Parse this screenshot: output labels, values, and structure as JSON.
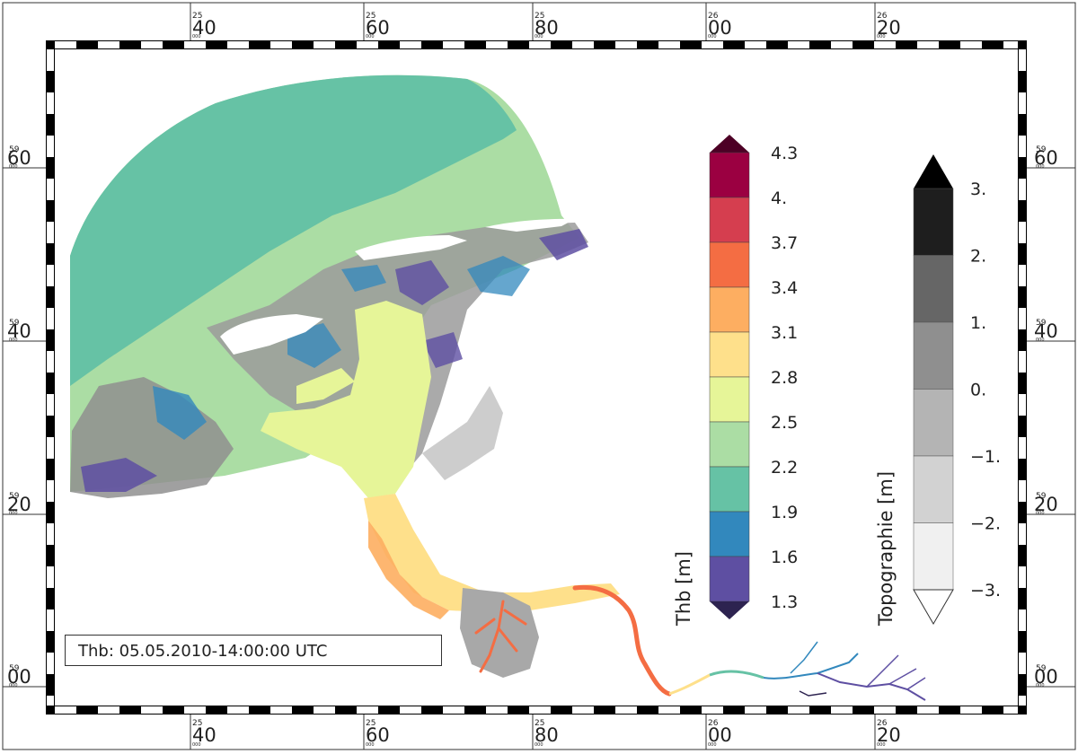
{
  "timestamp": "Thb: 05.05.2010-14:00:00 UTC",
  "axes": {
    "x_ticks": [
      {
        "small": "25",
        "big": "40",
        "tiny": "000"
      },
      {
        "small": "25",
        "big": "60",
        "tiny": "000"
      },
      {
        "small": "25",
        "big": "80",
        "tiny": "000"
      },
      {
        "small": "26",
        "big": "00",
        "tiny": "000"
      },
      {
        "small": "26",
        "big": "20",
        "tiny": "000"
      }
    ],
    "y_ticks": [
      {
        "small": "59",
        "big": "60",
        "tiny": "000"
      },
      {
        "small": "59",
        "big": "40",
        "tiny": "000"
      },
      {
        "small": "59",
        "big": "20",
        "tiny": "000"
      },
      {
        "small": "59",
        "big": "00",
        "tiny": "000"
      }
    ]
  },
  "colorbars": {
    "thb": {
      "title": "Thb [m]",
      "labels": [
        "4.3",
        "4.",
        "3.7",
        "3.4",
        "3.1",
        "2.8",
        "2.5",
        "2.2",
        "1.9",
        "1.6",
        "1.3"
      ],
      "colors_top_to_bottom": [
        "#9b0041",
        "#d53e4f",
        "#f46d43",
        "#fdae61",
        "#fee08b",
        "#e6f598",
        "#abdda4",
        "#66c2a5",
        "#3288bd",
        "#5e4fa2"
      ],
      "over_color": "#4d0025",
      "under_color": "#2d2350"
    },
    "topo": {
      "title": "Topographie [m]",
      "labels": [
        "3.",
        "2.",
        "1.",
        "0.",
        "−1.",
        "−2.",
        "−3."
      ],
      "colors_top_to_bottom": [
        "#1e1e1e",
        "#666666",
        "#8f8f8f",
        "#b4b4b4",
        "#d2d2d2",
        "#f0f0f0"
      ],
      "over_color": "#000000",
      "under_color": "#ffffff"
    }
  }
}
